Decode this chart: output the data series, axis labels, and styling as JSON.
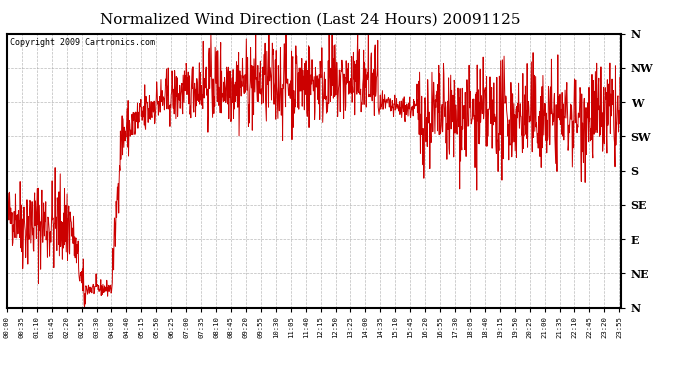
{
  "title": "Normalized Wind Direction (Last 24 Hours) 20091125",
  "copyright": "Copyright 2009 Cartronics.com",
  "line_color": "#cc0000",
  "background_color": "#ffffff",
  "grid_color": "#aaaaaa",
  "ytick_labels": [
    "N",
    "NW",
    "W",
    "SW",
    "S",
    "SE",
    "E",
    "NE",
    "N"
  ],
  "ytick_values": [
    360,
    315,
    270,
    225,
    180,
    135,
    90,
    45,
    0
  ],
  "ylim": [
    0,
    360
  ],
  "ylabel_fontsize": 8,
  "title_fontsize": 11,
  "xtick_interval_minutes": 35,
  "total_minutes": 1440,
  "seed": 42
}
